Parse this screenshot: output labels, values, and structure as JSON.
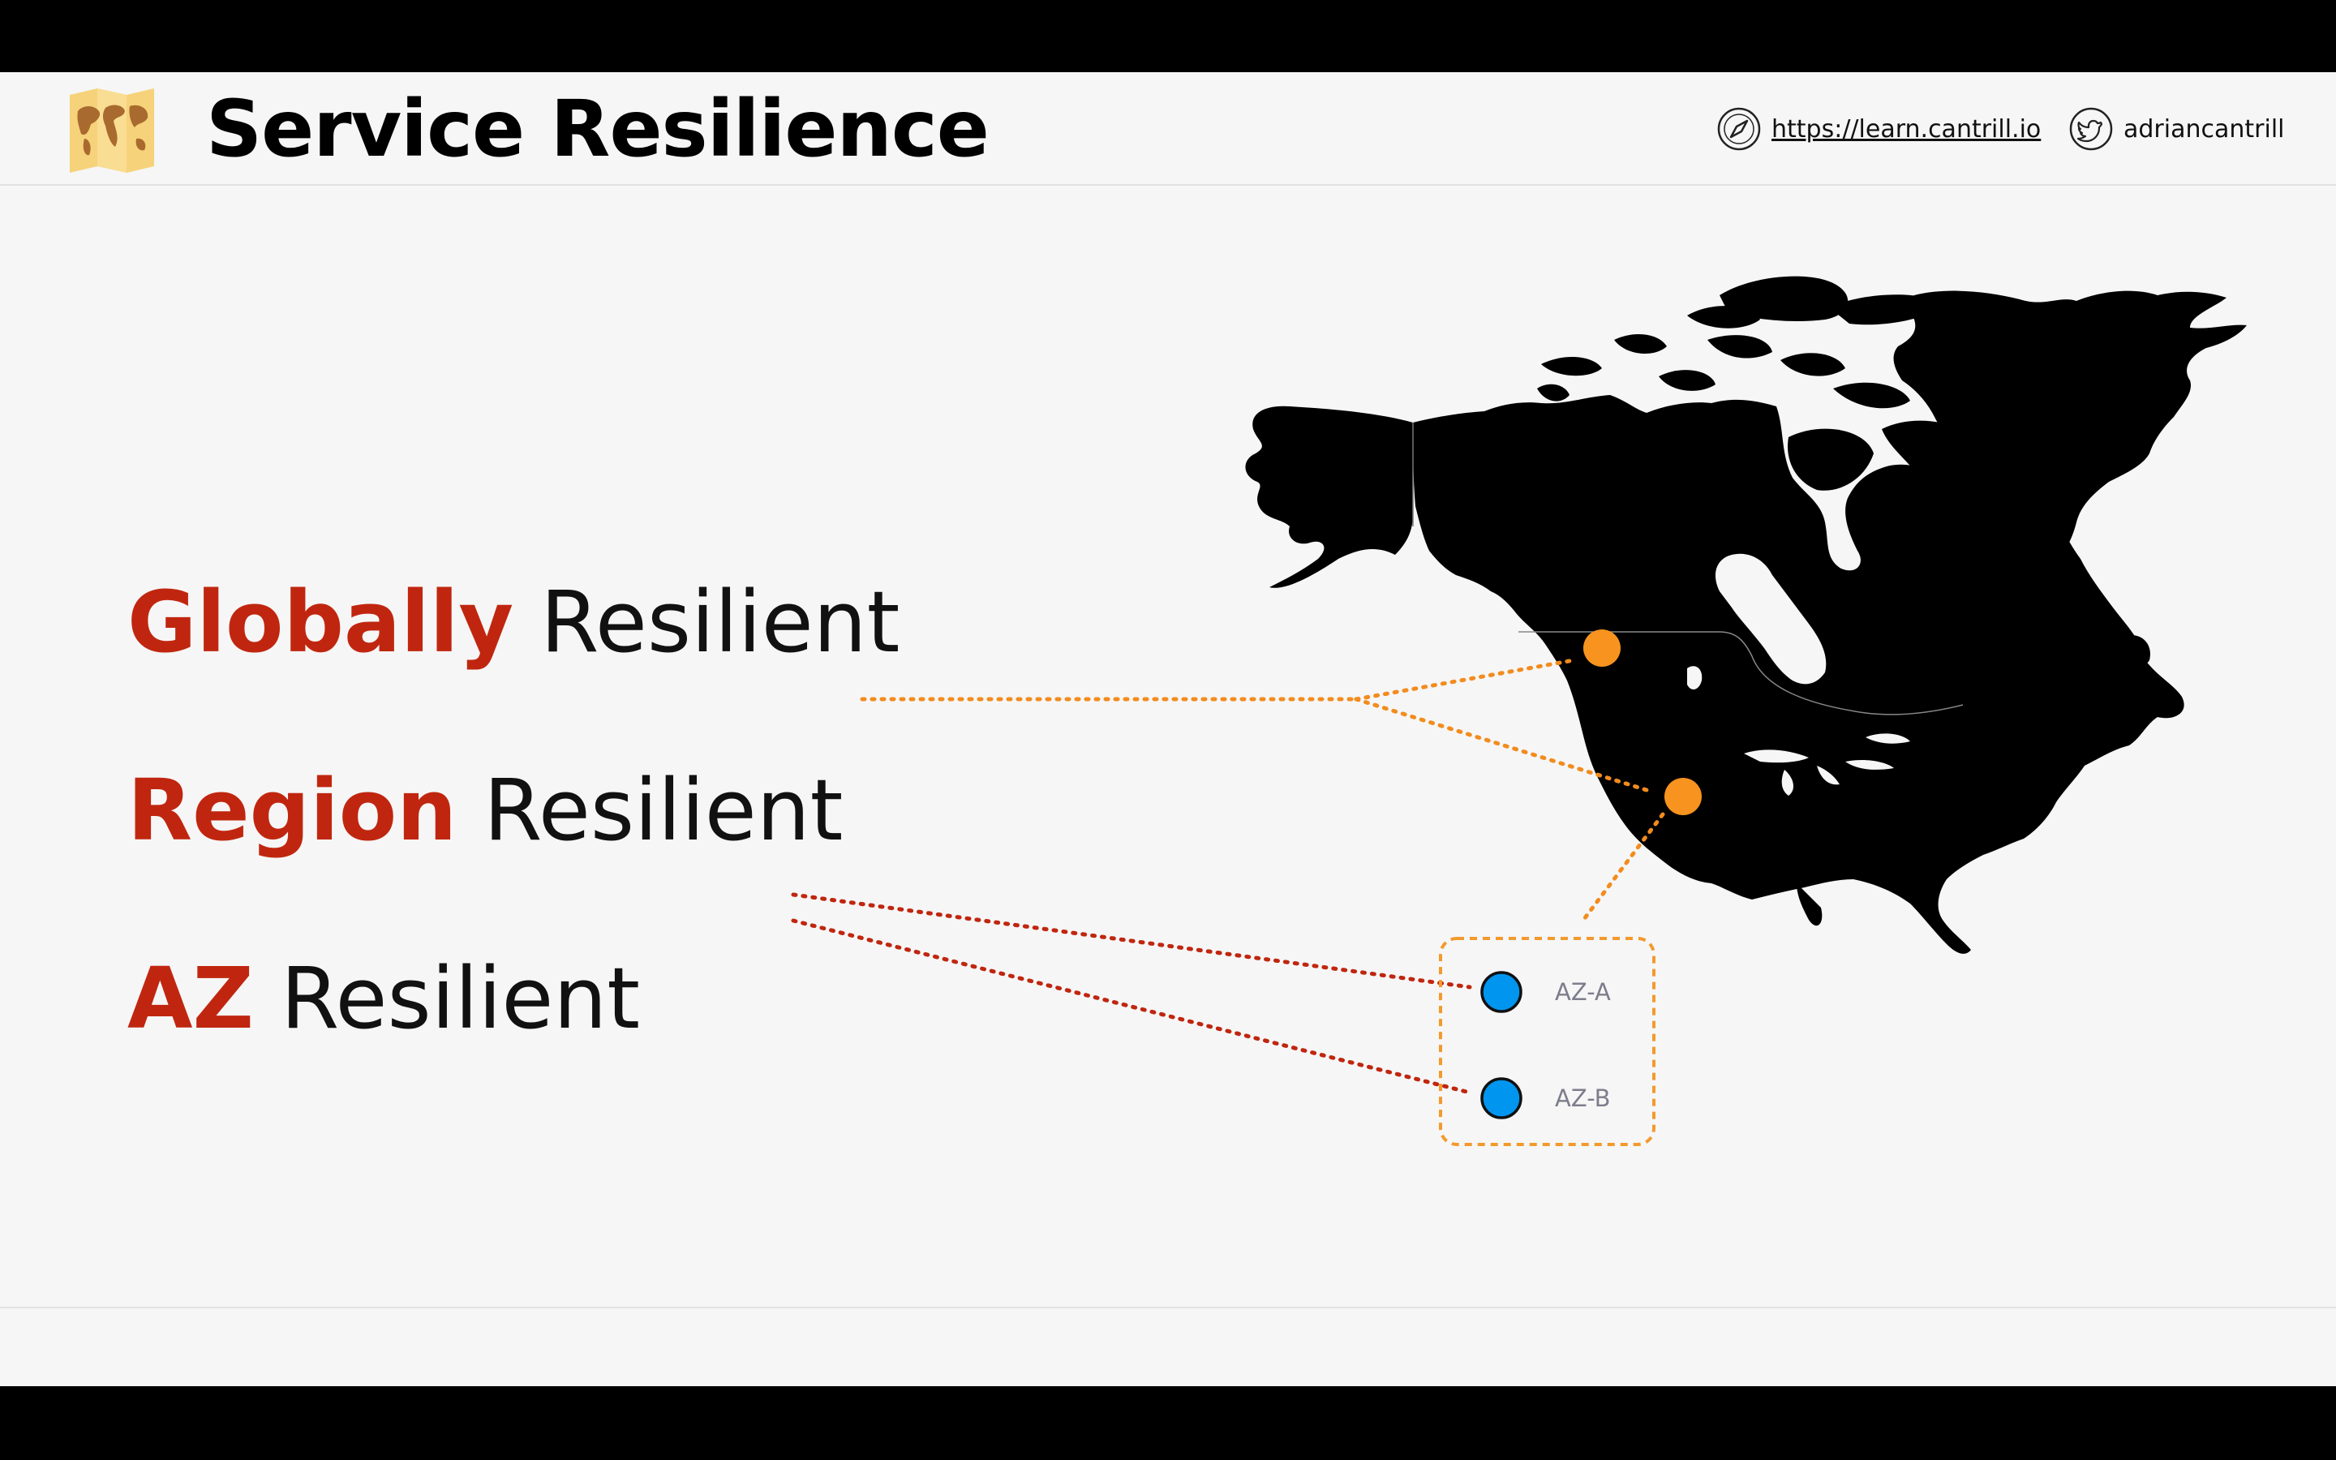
{
  "header": {
    "title": "Service Resilience",
    "logo_icon": "world-map-icon",
    "website": {
      "icon": "compass-icon",
      "text": "https://learn.cantrill.io"
    },
    "twitter": {
      "icon": "twitter-bird-icon",
      "text": "adriancantrill"
    }
  },
  "levels": [
    {
      "emphasis": "Globally",
      "rest": "Resilient",
      "color": "#c0260f"
    },
    {
      "emphasis": "Region",
      "rest": "Resilient",
      "color": "#c0260f"
    },
    {
      "emphasis": "AZ",
      "rest": "Resilient",
      "color": "#c0260f"
    }
  ],
  "diagram": {
    "map_icon": "north-america-map-icon",
    "zones": [
      {
        "label": "AZ-A"
      },
      {
        "label": "AZ-B"
      }
    ],
    "colors": {
      "global_link": "#f28c1e",
      "region_link": "#c0260f",
      "region_dot": "#f7931e",
      "az_dot": "#0096f0",
      "region_box": "#f29a2e"
    }
  }
}
